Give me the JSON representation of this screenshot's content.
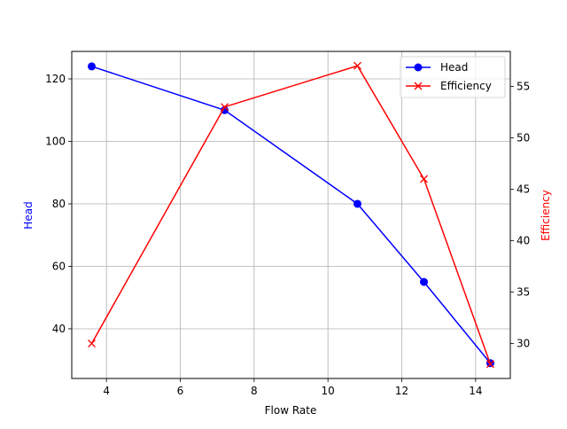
{
  "chart_data": {
    "type": "line",
    "title": "",
    "xlabel": "Flow Rate",
    "ylabel": "Head",
    "y2label": "Efficiency",
    "x": [
      3.6,
      7.2,
      10.8,
      12.6,
      14.4
    ],
    "xlim": [
      3.06,
      14.94
    ],
    "ylim": [
      24.1,
      128.8
    ],
    "y2lim": [
      26.6,
      58.4
    ],
    "xticks": [
      4,
      6,
      8,
      10,
      12,
      14
    ],
    "yticks": [
      40,
      60,
      80,
      100,
      120
    ],
    "y2ticks": [
      30,
      35,
      40,
      45,
      50,
      55
    ],
    "grid": true,
    "legend_position": "upper right",
    "series": [
      {
        "name": "Head",
        "axis": "left",
        "color": "#0000ff",
        "marker": "circle",
        "values": [
          124,
          110,
          80,
          55,
          29
        ]
      },
      {
        "name": "Efficiency",
        "axis": "right",
        "color": "#ff0000",
        "marker": "x",
        "values": [
          30,
          53,
          57,
          46,
          28
        ]
      }
    ]
  }
}
